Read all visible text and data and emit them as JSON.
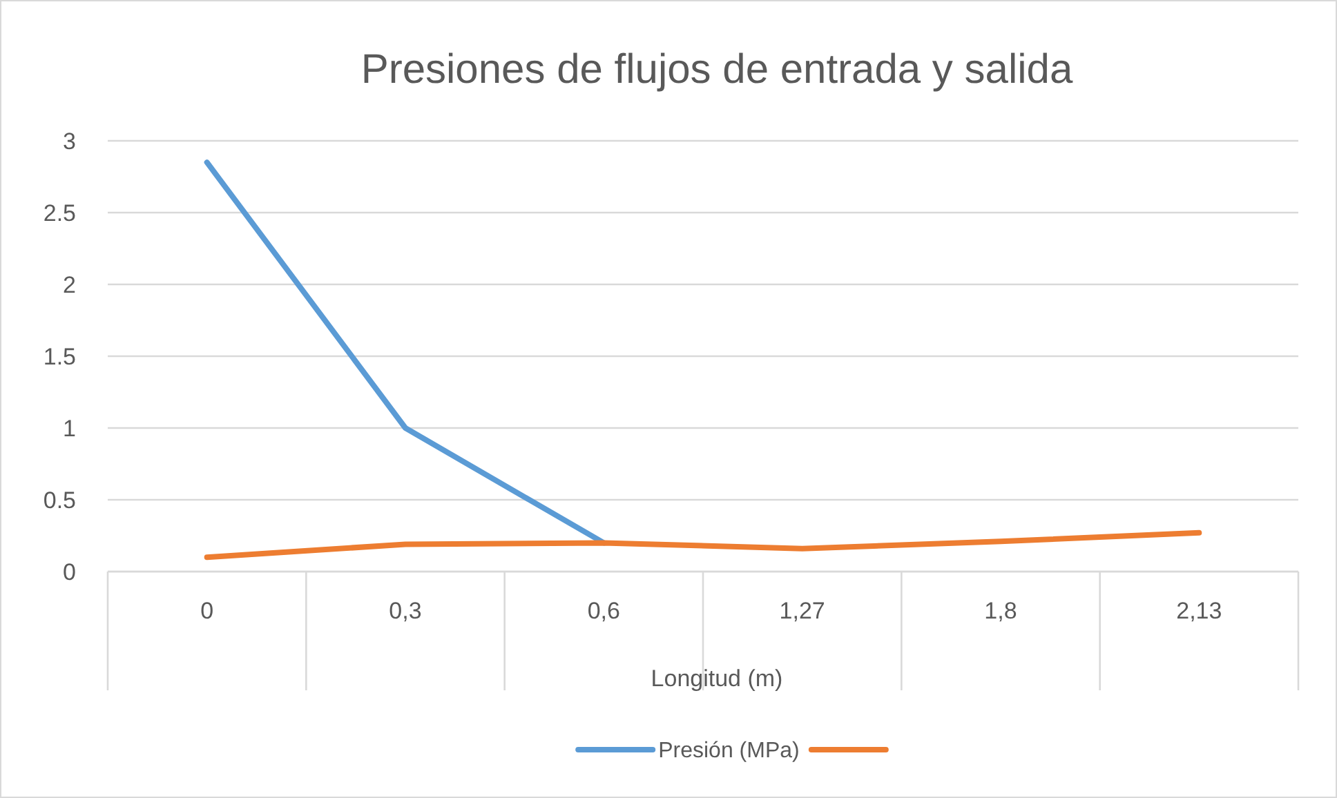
{
  "chart_data": {
    "type": "line",
    "title": "Presiones de flujos de entrada y salida",
    "xlabel": "Longitud (m)",
    "categories": [
      "0",
      "0,3",
      "0,6",
      "1,27",
      "1,8",
      "2,13"
    ],
    "series": [
      {
        "name": "Presión (MPa)",
        "color": "#5b9bd5",
        "values": [
          2.85,
          1.0,
          0.2,
          null,
          null,
          null
        ]
      },
      {
        "color": "#ed7d31",
        "values": [
          0.1,
          0.19,
          0.2,
          0.16,
          0.21,
          0.27
        ]
      }
    ],
    "ylim": [
      0,
      3
    ],
    "yticks": [
      0,
      0.5,
      1,
      1.5,
      2,
      2.5,
      3
    ],
    "grid": "y",
    "legend": "bottom",
    "marker": "none",
    "line_style": "solid"
  }
}
